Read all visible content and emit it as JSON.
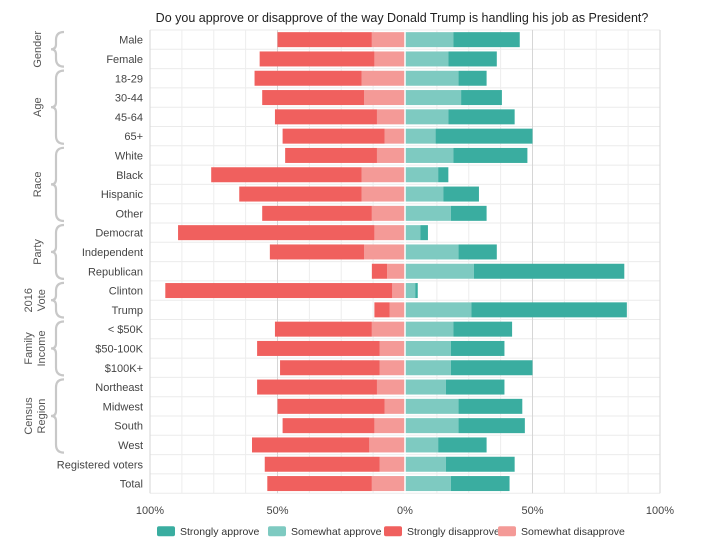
{
  "chart_data": {
    "type": "bar",
    "orientation": "horizontal-diverging",
    "title": "Do you approve or disapprove of the way Donald Trump is handling his job as President?",
    "xlim": [
      -100,
      100
    ],
    "x_ticks": [
      "100%",
      "50%",
      "0%",
      "50%",
      "100%"
    ],
    "grid": true,
    "legend_position": "bottom",
    "colors": {
      "strongly_approve": "#3aada0",
      "somewhat_approve": "#7ecac1",
      "strongly_disapprove": "#f0605e",
      "somewhat_disapprove": "#f49a97"
    },
    "legend": [
      "Strongly approve",
      "Somewhat approve",
      "Strongly disapprove",
      "Somewhat disapprove"
    ],
    "groups": [
      {
        "lines": [
          "Gender"
        ],
        "rows": [
          0,
          1
        ]
      },
      {
        "lines": [
          "Age"
        ],
        "rows": [
          2,
          5
        ]
      },
      {
        "lines": [
          "Race"
        ],
        "rows": [
          6,
          9
        ]
      },
      {
        "lines": [
          "Party"
        ],
        "rows": [
          10,
          12
        ]
      },
      {
        "lines": [
          "2016",
          "Vote"
        ],
        "rows": [
          13,
          14
        ]
      },
      {
        "lines": [
          "Family",
          "Income"
        ],
        "rows": [
          15,
          17
        ]
      },
      {
        "lines": [
          "Census",
          "Region"
        ],
        "rows": [
          18,
          21
        ]
      }
    ],
    "categories": [
      "Male",
      "Female",
      "18-29",
      "30-44",
      "45-64",
      "65+",
      "White",
      "Black",
      "Hispanic",
      "Other",
      "Democrat",
      "Independent",
      "Republican",
      "Clinton",
      "Trump",
      "< $50K",
      "$50-100K",
      "$100K+",
      "Northeast",
      "Midwest",
      "South",
      "West",
      "Registered voters",
      "Total"
    ],
    "series": [
      {
        "name": "Strongly approve",
        "values": [
          26,
          19,
          11,
          16,
          26,
          38,
          29,
          4,
          14,
          14,
          3,
          15,
          59,
          1,
          61,
          23,
          21,
          32,
          23,
          25,
          26,
          19,
          27,
          23
        ]
      },
      {
        "name": "Somewhat approve",
        "values": [
          19,
          17,
          21,
          22,
          17,
          12,
          19,
          13,
          15,
          18,
          6,
          21,
          27,
          4,
          26,
          19,
          18,
          18,
          16,
          21,
          21,
          13,
          16,
          18
        ]
      },
      {
        "name": "Strongly disapprove",
        "values": [
          37,
          45,
          42,
          40,
          40,
          40,
          36,
          59,
          48,
          43,
          77,
          37,
          6,
          89,
          6,
          38,
          48,
          39,
          47,
          42,
          36,
          46,
          45,
          41
        ]
      },
      {
        "name": "Somewhat disapprove",
        "values": [
          13,
          12,
          17,
          16,
          11,
          8,
          11,
          17,
          17,
          13,
          12,
          16,
          7,
          5,
          6,
          13,
          10,
          10,
          11,
          8,
          12,
          14,
          10,
          13
        ]
      }
    ]
  }
}
